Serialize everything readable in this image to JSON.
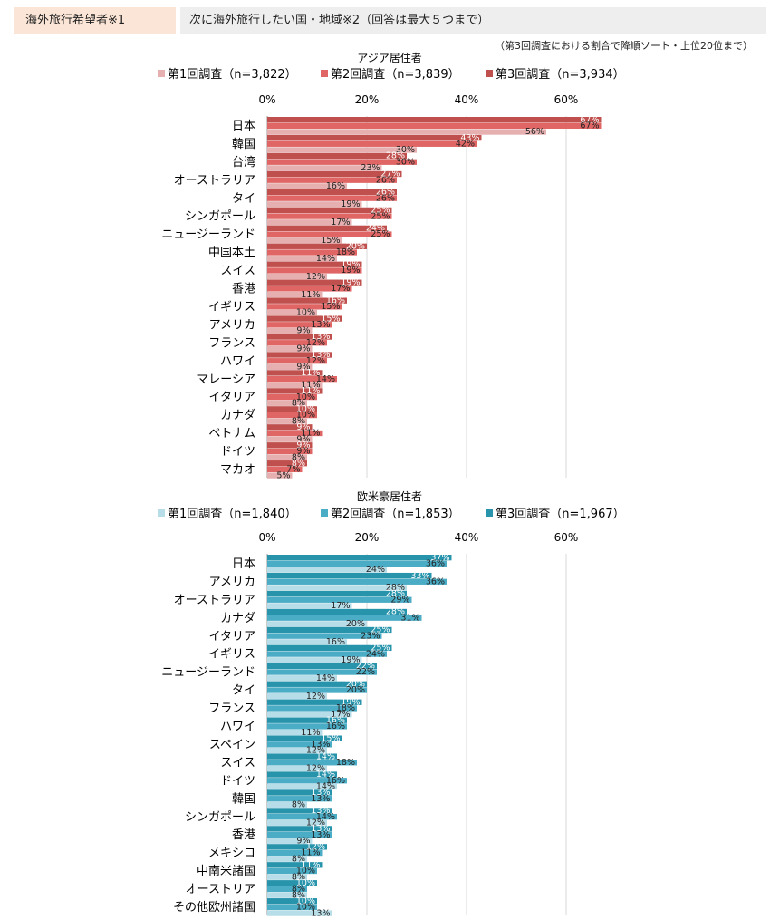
{
  "header": {
    "label": "海外旅行希望者※1",
    "question": "次に海外旅行したい国・地域※2（回答は最大５つまで）",
    "note": "（第3回調査における割合で降順ソート・上位20位まで）"
  },
  "chart_data": [
    {
      "type": "bar",
      "orientation": "horizontal",
      "title": "アジア居住者",
      "xlim": [
        0,
        70
      ],
      "xticks": [
        "0%",
        "20%",
        "40%",
        "60%"
      ],
      "grid": true,
      "legend_position": "top",
      "categories": [
        "日本",
        "韓国",
        "台湾",
        "オーストラリア",
        "タイ",
        "シンガポール",
        "ニュージーランド",
        "中国本土",
        "スイス",
        "香港",
        "イギリス",
        "アメリカ",
        "フランス",
        "ハワイ",
        "マレーシア",
        "イタリア",
        "カナダ",
        "ベトナム",
        "ドイツ",
        "マカオ"
      ],
      "series": [
        {
          "name": "第3回調査（n=3,934）",
          "color": "#c0504d",
          "values": [
            67,
            43,
            28,
            27,
            26,
            25,
            24,
            20,
            19,
            19,
            16,
            15,
            13,
            13,
            11,
            11,
            10,
            9,
            9,
            8
          ]
        },
        {
          "name": "第2回調査（n=3,839）",
          "color": "#e06666",
          "values": [
            67,
            42,
            30,
            26,
            26,
            25,
            25,
            18,
            19,
            17,
            15,
            13,
            12,
            12,
            14,
            10,
            10,
            11,
            9,
            7
          ]
        },
        {
          "name": "第1回調査（n=3,822）",
          "color": "#e6b0b0",
          "values": [
            56,
            30,
            23,
            16,
            19,
            17,
            15,
            14,
            12,
            11,
            10,
            9,
            9,
            9,
            11,
            8,
            8,
            9,
            8,
            5
          ]
        }
      ]
    },
    {
      "type": "bar",
      "orientation": "horizontal",
      "title": "欧米豪居住者",
      "xlim": [
        0,
        70
      ],
      "xticks": [
        "0%",
        "20%",
        "40%",
        "60%"
      ],
      "grid": true,
      "legend_position": "top",
      "categories": [
        "日本",
        "アメリカ",
        "オーストラリア",
        "カナダ",
        "イタリア",
        "イギリス",
        "ニュージーランド",
        "タイ",
        "フランス",
        "ハワイ",
        "スペイン",
        "スイス",
        "ドイツ",
        "韓国",
        "シンガポール",
        "香港",
        "メキシコ",
        "中南米諸国",
        "オーストリア",
        "その他欧州諸国"
      ],
      "series": [
        {
          "name": "第3回調査（n=1,967）",
          "color": "#2794ac",
          "values": [
            37,
            33,
            28,
            28,
            25,
            25,
            22,
            20,
            19,
            16,
            15,
            14,
            14,
            13,
            13,
            13,
            12,
            11,
            10,
            10
          ]
        },
        {
          "name": "第2回調査（n=1,853）",
          "color": "#4bacc6",
          "values": [
            36,
            36,
            29,
            31,
            23,
            24,
            22,
            20,
            18,
            16,
            13,
            18,
            16,
            13,
            14,
            13,
            11,
            10,
            8,
            10
          ]
        },
        {
          "name": "第1回調査（n=1,840）",
          "color": "#b7dde8",
          "values": [
            24,
            28,
            17,
            20,
            16,
            19,
            14,
            12,
            17,
            11,
            12,
            12,
            14,
            8,
            12,
            9,
            8,
            8,
            8,
            13
          ]
        }
      ]
    }
  ]
}
